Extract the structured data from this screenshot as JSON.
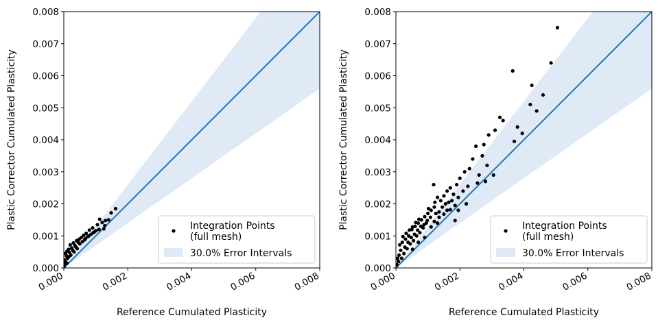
{
  "chart_data": [
    {
      "type": "scatter",
      "xlabel": "Reference Cumulated Plasticity",
      "ylabel": "Plastic Corrector Cumulated Plasticity",
      "xlim": [
        0,
        0.008
      ],
      "ylim": [
        0,
        0.008
      ],
      "x_ticks": [
        "0.000",
        "0.002",
        "0.004",
        "0.006",
        "0.008"
      ],
      "y_ticks": [
        "0.000",
        "0.001",
        "0.002",
        "0.003",
        "0.004",
        "0.005",
        "0.006",
        "0.007",
        "0.008"
      ],
      "error_interval_fraction": 0.3,
      "identity_line_color": "#1f77b4",
      "band_color": "#dfeaf6",
      "point_color": "#000000",
      "legend": {
        "placement": "lower-right",
        "points_label_line1": "Integration Points",
        "points_label_line2": "(full mesh)",
        "band_label": "30.0% Error Intervals"
      },
      "series": [
        {
          "name": "Integration Points (full mesh)",
          "points": [
            [
              0.00162,
              0.00185
            ],
            [
              0.00148,
              0.00172
            ],
            [
              0.00112,
              0.00152
            ],
            [
              0.0013,
              0.00148
            ],
            [
              0.0012,
              0.00142
            ],
            [
              0.00105,
              0.00135
            ],
            [
              0.0014,
              0.0015
            ],
            [
              0.00128,
              0.00132
            ],
            [
              0.00125,
              0.00122
            ],
            [
              0.0009,
              0.00125
            ],
            [
              0.0008,
              0.00118
            ],
            [
              0.00095,
              0.00112
            ],
            [
              0.0011,
              0.0012
            ],
            [
              0.0007,
              0.00108
            ],
            [
              0.00062,
              0.00102
            ],
            [
              0.00075,
              0.00098
            ],
            [
              0.00085,
              0.00105
            ],
            [
              0.00055,
              0.00095
            ],
            [
              0.00048,
              0.0009
            ],
            [
              0.00065,
              0.00088
            ],
            [
              0.0004,
              0.00085
            ],
            [
              0.0003,
              0.00078
            ],
            [
              0.00045,
              0.0008
            ],
            [
              0.00058,
              0.00082
            ],
            [
              0.0002,
              0.00072
            ],
            [
              0.00035,
              0.0007
            ],
            [
              0.00025,
              0.00062
            ],
            [
              0.00015,
              0.00058
            ],
            [
              0.0001,
              0.00052
            ],
            [
              0.00018,
              0.00048
            ],
            [
              0.00028,
              0.00055
            ],
            [
              5e-05,
              0.00045
            ],
            [
              8e-05,
              0.00038
            ],
            [
              0.00012,
              0.0003
            ],
            [
              3e-05,
              0.00025
            ],
            [
              6e-05,
              0.00018
            ],
            [
              2e-05,
              0.0001
            ],
            [
              0.0001,
              0.00015
            ],
            [
              4e-05,
              0.0002
            ],
            [
              0.00038,
              0.00065
            ],
            [
              0.0005,
              0.00075
            ],
            [
              0.00068,
              0.00092
            ],
            [
              0.00078,
              0.001
            ],
            [
              0.00092,
              0.0011
            ],
            [
              0.001,
              0.00116
            ],
            [
              0.00022,
              0.0004
            ],
            [
              0.00032,
              0.0005
            ],
            [
              0.00042,
              0.0006
            ],
            [
              0.00016,
              0.00035
            ],
            [
              1e-05,
              5e-05
            ]
          ]
        }
      ]
    },
    {
      "type": "scatter",
      "xlabel": "Reference Cumulated Plasticity",
      "ylabel": "Plastic Corrector Cumulated Plasticity",
      "xlim": [
        0,
        0.008
      ],
      "ylim": [
        0,
        0.008
      ],
      "x_ticks": [
        "0.000",
        "0.002",
        "0.004",
        "0.006",
        "0.008"
      ],
      "y_ticks": [
        "0.000",
        "0.001",
        "0.002",
        "0.003",
        "0.004",
        "0.005",
        "0.006",
        "0.007",
        "0.008"
      ],
      "error_interval_fraction": 0.3,
      "identity_line_color": "#1f77b4",
      "band_color": "#dfeaf6",
      "point_color": "#000000",
      "legend": {
        "placement": "lower-right",
        "points_label_line1": "Integration Points",
        "points_label_line2": "(full mesh)",
        "band_label": "30.0% Error Intervals"
      },
      "series": [
        {
          "name": "Integration Points (full mesh)",
          "points": [
            [
              0.00505,
              0.0075
            ],
            [
              0.00365,
              0.00615
            ],
            [
              0.00485,
              0.0064
            ],
            [
              0.00425,
              0.0057
            ],
            [
              0.0046,
              0.0054
            ],
            [
              0.0042,
              0.0051
            ],
            [
              0.0044,
              0.0049
            ],
            [
              0.00325,
              0.0047
            ],
            [
              0.0038,
              0.0044
            ],
            [
              0.00395,
              0.0042
            ],
            [
              0.0037,
              0.00395
            ],
            [
              0.00335,
              0.0046
            ],
            [
              0.0031,
              0.0043
            ],
            [
              0.0029,
              0.00415
            ],
            [
              0.00275,
              0.00385
            ],
            [
              0.0025,
              0.0038
            ],
            [
              0.0027,
              0.0035
            ],
            [
              0.00285,
              0.0032
            ],
            [
              0.0024,
              0.0034
            ],
            [
              0.0023,
              0.0031
            ],
            [
              0.0026,
              0.0029
            ],
            [
              0.00215,
              0.003
            ],
            [
              0.002,
              0.0028
            ],
            [
              0.0019,
              0.0026
            ],
            [
              0.0017,
              0.0025
            ],
            [
              0.00118,
              0.0026
            ],
            [
              0.0016,
              0.0024
            ],
            [
              0.0018,
              0.0023
            ],
            [
              0.0015,
              0.00225
            ],
            [
              0.0014,
              0.0021
            ],
            [
              0.00155,
              0.002
            ],
            [
              0.0013,
              0.0022
            ],
            [
              0.0012,
              0.0019
            ],
            [
              0.0011,
              0.0018
            ],
            [
              0.001,
              0.0017
            ],
            [
              0.0009,
              0.0016
            ],
            [
              0.0008,
              0.0015
            ],
            [
              0.00095,
              0.0014
            ],
            [
              0.0007,
              0.0014
            ],
            [
              0.0006,
              0.0013
            ],
            [
              0.00085,
              0.00125
            ],
            [
              0.0005,
              0.0012
            ],
            [
              0.00075,
              0.0011
            ],
            [
              0.0004,
              0.001
            ],
            [
              0.00065,
              0.001
            ],
            [
              0.0003,
              0.0009
            ],
            [
              0.00055,
              0.00085
            ],
            [
              0.0002,
              0.0008
            ],
            [
              0.00045,
              0.00075
            ],
            [
              0.00035,
              0.0006
            ],
            [
              0.00015,
              0.00055
            ],
            [
              0.00025,
              0.00045
            ],
            [
              0.0001,
              0.0004
            ],
            [
              5e-05,
              0.0003
            ],
            [
              8e-05,
              0.0002
            ],
            [
              3e-05,
              0.0001
            ],
            [
              0.00018,
              0.0003
            ],
            [
              0.00028,
              0.00065
            ],
            [
              0.00038,
              0.0008
            ],
            [
              0.00048,
              0.00095
            ],
            [
              0.00058,
              0.00105
            ],
            [
              0.00068,
              0.00118
            ],
            [
              0.00078,
              0.0013
            ],
            [
              0.00088,
              0.00135
            ],
            [
              0.00098,
              0.00148
            ],
            [
              0.00108,
              0.00158
            ],
            [
              0.00125,
              0.0017
            ],
            [
              0.00135,
              0.00175
            ],
            [
              0.00145,
              0.0019
            ],
            [
              0.00165,
              0.00205
            ],
            [
              0.00175,
              0.0021
            ],
            [
              0.00185,
              0.00195
            ],
            [
              0.00195,
              0.0022
            ],
            [
              0.0021,
              0.0024
            ],
            [
              0.00225,
              0.00255
            ],
            [
              0.00195,
              0.0018
            ],
            [
              0.00185,
              0.00148
            ],
            [
              0.0022,
              0.002
            ],
            [
              0.0013,
              0.0014
            ],
            [
              0.0011,
              0.00128
            ],
            [
              0.0009,
              0.00095
            ],
            [
              0.0007,
              0.0008
            ],
            [
              0.00052,
              0.00058
            ],
            [
              0.0012,
              0.00145
            ],
            [
              0.00135,
              0.00158
            ],
            [
              0.0015,
              0.00168
            ],
            [
              0.0016,
              0.0018
            ],
            [
              0.0017,
              0.00182
            ],
            [
              0.00255,
              0.00265
            ],
            [
              0.0028,
              0.0027
            ],
            [
              0.00305,
              0.0029
            ],
            [
              0.00062,
              0.00142
            ],
            [
              0.00042,
              0.00118
            ],
            [
              0.00022,
              0.00098
            ],
            [
              0.00012,
              0.00072
            ],
            [
              0.00032,
              0.00108
            ],
            [
              0.00052,
              0.00128
            ],
            [
              0.00072,
              0.00152
            ],
            [
              0.00102,
              0.00185
            ],
            [
              0.00122,
              0.00205
            ]
          ]
        }
      ]
    }
  ]
}
